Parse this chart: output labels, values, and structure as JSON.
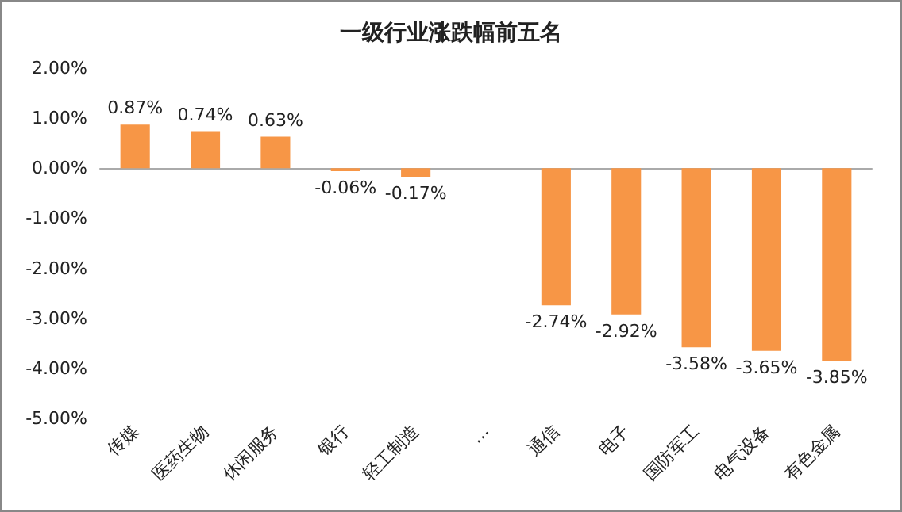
{
  "chart_data": {
    "type": "bar",
    "title": "一级行业涨跌幅前五名",
    "categories": [
      "传媒",
      "医药生物",
      "休闲服务",
      "银行",
      "轻工制造",
      "…",
      "通信",
      "电子",
      "国防军工",
      "电气设备",
      "有色金属"
    ],
    "values": [
      0.87,
      0.74,
      0.63,
      -0.06,
      -0.17,
      null,
      -2.74,
      -2.92,
      -3.58,
      -3.65,
      -3.85
    ],
    "value_labels": [
      "0.87%",
      "0.74%",
      "0.63%",
      "-0.06%",
      "-0.17%",
      null,
      "-2.74%",
      "-2.92%",
      "-3.58%",
      "-3.65%",
      "-3.85%"
    ],
    "color": "#f79646",
    "ylim": [
      -5,
      2
    ],
    "yticks": [
      {
        "value": 2,
        "label": "2.00%"
      },
      {
        "value": 1,
        "label": "1.00%"
      },
      {
        "value": 0,
        "label": "0.00%"
      },
      {
        "value": -1,
        "label": "-1.00%"
      },
      {
        "value": -2,
        "label": "-2.00%"
      },
      {
        "value": -3,
        "label": "-3.00%"
      },
      {
        "value": -4,
        "label": "-4.00%"
      },
      {
        "value": -5,
        "label": "-5.00%"
      }
    ]
  }
}
